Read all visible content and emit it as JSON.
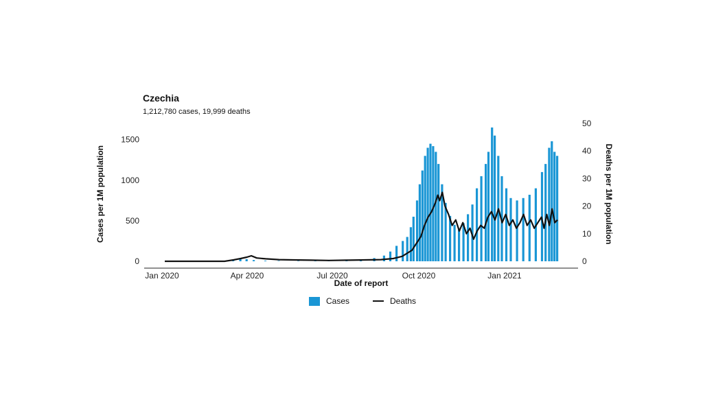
{
  "title": "Czechia",
  "subtitle": "1,212,780 cases, 19,999 deaths",
  "chart_data": {
    "type": "bar+line",
    "title": "Czechia",
    "subtitle": "1,212,780 cases, 19,999 deaths",
    "xlabel": "Date of report",
    "ylabel_left": "Cases per 1M population",
    "ylabel_right": "Deaths per 1M population",
    "x_ticks": [
      "Jan 2020",
      "Apr 2020",
      "Jul 2020",
      "Oct 2020",
      "Jan 2021"
    ],
    "ylim_left": [
      0,
      1700
    ],
    "ylim_right": [
      0,
      50
    ],
    "yticks_left": [
      0,
      500,
      1000,
      1500
    ],
    "yticks_right": [
      0,
      10,
      20,
      30,
      40,
      50
    ],
    "x_range": [
      "2020-01-03",
      "2021-03-18"
    ],
    "grid": false,
    "legend_position": "bottom",
    "colors": {
      "cases": "#1a96d5",
      "deaths": "#111111"
    },
    "series": [
      {
        "name": "Cases",
        "kind": "bar",
        "axis": "left",
        "points": [
          [
            "2020-03-01",
            2
          ],
          [
            "2020-03-10",
            6
          ],
          [
            "2020-03-20",
            18
          ],
          [
            "2020-03-28",
            28
          ],
          [
            "2020-04-04",
            25
          ],
          [
            "2020-04-12",
            15
          ],
          [
            "2020-04-25",
            8
          ],
          [
            "2020-05-10",
            5
          ],
          [
            "2020-06-01",
            4
          ],
          [
            "2020-06-20",
            8
          ],
          [
            "2020-07-05",
            14
          ],
          [
            "2020-07-25",
            18
          ],
          [
            "2020-08-10",
            25
          ],
          [
            "2020-08-25",
            40
          ],
          [
            "2020-09-05",
            70
          ],
          [
            "2020-09-12",
            120
          ],
          [
            "2020-09-19",
            190
          ],
          [
            "2020-09-26",
            250
          ],
          [
            "2020-10-01",
            300
          ],
          [
            "2020-10-05",
            420
          ],
          [
            "2020-10-08",
            550
          ],
          [
            "2020-10-12",
            750
          ],
          [
            "2020-10-15",
            950
          ],
          [
            "2020-10-18",
            1120
          ],
          [
            "2020-10-21",
            1300
          ],
          [
            "2020-10-24",
            1400
          ],
          [
            "2020-10-27",
            1450
          ],
          [
            "2020-10-30",
            1420
          ],
          [
            "2020-11-02",
            1350
          ],
          [
            "2020-11-05",
            1200
          ],
          [
            "2020-11-09",
            950
          ],
          [
            "2020-11-13",
            720
          ],
          [
            "2020-11-18",
            560
          ],
          [
            "2020-11-23",
            450
          ],
          [
            "2020-11-28",
            400
          ],
          [
            "2020-12-03",
            470
          ],
          [
            "2020-12-08",
            580
          ],
          [
            "2020-12-13",
            700
          ],
          [
            "2020-12-18",
            900
          ],
          [
            "2020-12-23",
            1050
          ],
          [
            "2020-12-28",
            1200
          ],
          [
            "2020-12-31",
            1350
          ],
          [
            "2021-01-04",
            1650
          ],
          [
            "2021-01-07",
            1550
          ],
          [
            "2021-01-11",
            1300
          ],
          [
            "2021-01-15",
            1050
          ],
          [
            "2021-01-20",
            900
          ],
          [
            "2021-01-25",
            780
          ],
          [
            "2021-02-01",
            750
          ],
          [
            "2021-02-08",
            780
          ],
          [
            "2021-02-15",
            820
          ],
          [
            "2021-02-22",
            900
          ],
          [
            "2021-03-01",
            1100
          ],
          [
            "2021-03-05",
            1200
          ],
          [
            "2021-03-09",
            1400
          ],
          [
            "2021-03-12",
            1480
          ],
          [
            "2021-03-15",
            1350
          ],
          [
            "2021-03-18",
            1300
          ]
        ]
      },
      {
        "name": "Deaths",
        "kind": "line",
        "axis": "right",
        "points": [
          [
            "2020-01-03",
            0
          ],
          [
            "2020-03-10",
            0
          ],
          [
            "2020-03-20",
            0.5
          ],
          [
            "2020-03-28",
            1.0
          ],
          [
            "2020-04-04",
            1.5
          ],
          [
            "2020-04-09",
            2.0
          ],
          [
            "2020-04-15",
            1.2
          ],
          [
            "2020-04-25",
            0.9
          ],
          [
            "2020-05-10",
            0.6
          ],
          [
            "2020-05-25",
            0.5
          ],
          [
            "2020-06-15",
            0.4
          ],
          [
            "2020-07-05",
            0.3
          ],
          [
            "2020-07-25",
            0.4
          ],
          [
            "2020-08-15",
            0.5
          ],
          [
            "2020-09-01",
            0.6
          ],
          [
            "2020-09-15",
            1.0
          ],
          [
            "2020-09-25",
            1.8
          ],
          [
            "2020-10-01",
            3
          ],
          [
            "2020-10-06",
            4
          ],
          [
            "2020-10-12",
            7
          ],
          [
            "2020-10-16",
            9
          ],
          [
            "2020-10-20",
            13
          ],
          [
            "2020-10-24",
            16
          ],
          [
            "2020-10-28",
            18
          ],
          [
            "2020-11-01",
            21
          ],
          [
            "2020-11-04",
            24
          ],
          [
            "2020-11-06",
            22
          ],
          [
            "2020-11-09",
            25
          ],
          [
            "2020-11-12",
            20
          ],
          [
            "2020-11-16",
            17
          ],
          [
            "2020-11-20",
            13
          ],
          [
            "2020-11-24",
            15
          ],
          [
            "2020-11-28",
            11
          ],
          [
            "2020-12-02",
            14
          ],
          [
            "2020-12-06",
            10
          ],
          [
            "2020-12-10",
            12
          ],
          [
            "2020-12-14",
            8
          ],
          [
            "2020-12-18",
            11
          ],
          [
            "2020-12-22",
            13
          ],
          [
            "2020-12-26",
            12
          ],
          [
            "2020-12-30",
            16
          ],
          [
            "2021-01-03",
            18
          ],
          [
            "2021-01-07",
            15
          ],
          [
            "2021-01-11",
            19
          ],
          [
            "2021-01-15",
            14
          ],
          [
            "2021-01-19",
            17
          ],
          [
            "2021-01-23",
            13
          ],
          [
            "2021-01-27",
            15
          ],
          [
            "2021-01-31",
            12
          ],
          [
            "2021-02-04",
            14
          ],
          [
            "2021-02-08",
            17
          ],
          [
            "2021-02-12",
            13
          ],
          [
            "2021-02-16",
            15
          ],
          [
            "2021-02-20",
            12
          ],
          [
            "2021-02-24",
            14
          ],
          [
            "2021-02-28",
            16
          ],
          [
            "2021-03-03",
            12
          ],
          [
            "2021-03-06",
            17
          ],
          [
            "2021-03-09",
            13
          ],
          [
            "2021-03-12",
            19
          ],
          [
            "2021-03-15",
            14
          ],
          [
            "2021-03-18",
            15
          ]
        ]
      }
    ]
  }
}
